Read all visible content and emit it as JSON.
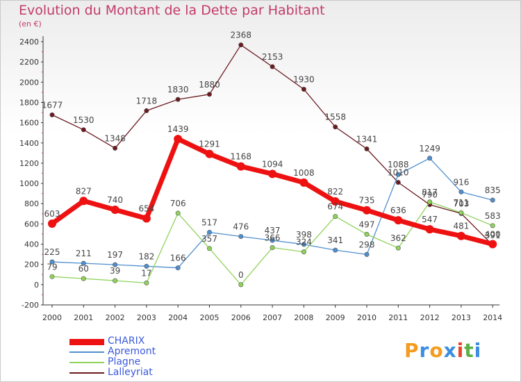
{
  "title": "Evolution du Montant de la Dette par Habitant",
  "subtitle": "(en €)",
  "logo": {
    "text": "Proxiti",
    "colors": [
      "#f39c1f",
      "#3b8de0",
      "#f39c1f",
      "#3b8de0",
      "#e8452c",
      "#5bb047",
      "#3b8de0"
    ]
  },
  "chart_data": {
    "type": "line",
    "x": [
      "2000",
      "2001",
      "2002",
      "2003",
      "2004",
      "2005",
      "2006",
      "2007",
      "2008",
      "2009",
      "2010",
      "2011",
      "2012",
      "2013",
      "2014"
    ],
    "ylim": [
      -200,
      2400
    ],
    "yticks": [
      -200,
      0,
      200,
      400,
      600,
      800,
      1000,
      1200,
      1400,
      1600,
      1800,
      2000,
      2200,
      2400
    ],
    "grid": false,
    "legend": "bottom-left",
    "series": [
      {
        "name": "Lalleyriat",
        "color": "#6b1a20",
        "values": [
          1677,
          1530,
          1348,
          1718,
          1830,
          1880,
          2368,
          2153,
          1930,
          1558,
          1341,
          1010,
          790,
          703,
          391
        ]
      },
      {
        "name": "Apremont",
        "color": "#4f8fcf",
        "values": [
          225,
          211,
          197,
          182,
          166,
          517,
          476,
          437,
          398,
          341,
          298,
          1088,
          1249,
          916,
          835
        ]
      },
      {
        "name": "Plagne",
        "color": "#8fd35a",
        "values": [
          79,
          60,
          39,
          17,
          706,
          357,
          0,
          366,
          324,
          674,
          497,
          362,
          817,
          711,
          583
        ]
      },
      {
        "name": "CHARIX",
        "color": "#ee1111",
        "values": [
          603,
          827,
          740,
          654,
          1439,
          1291,
          1168,
          1094,
          1008,
          822,
          735,
          636,
          547,
          481,
          400
        ]
      }
    ]
  }
}
